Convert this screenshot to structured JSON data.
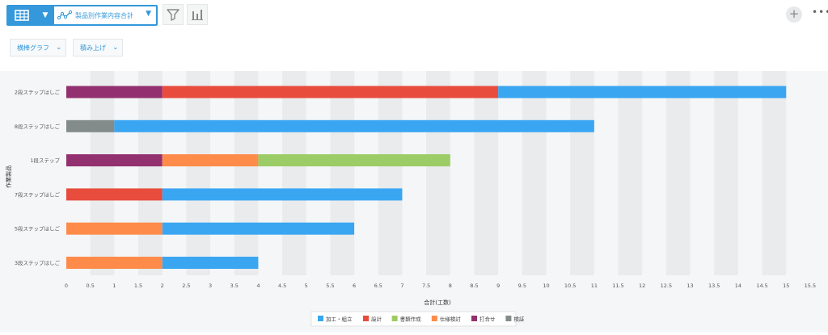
{
  "toolbar": {
    "view_label": "製品別作業内容合計",
    "icons": [
      "table-icon",
      "chevron-down-icon",
      "line-graph-icon",
      "filter-icon",
      "bar-chart-icon",
      "plus-icon",
      "more-icon"
    ],
    "accent": "#3498db"
  },
  "options": {
    "chart_type_label": "横棒グラフ",
    "stack_label": "積み上げ"
  },
  "chart_data": {
    "type": "bar",
    "orientation": "horizontal",
    "stacked": true,
    "title": "",
    "xlabel": "合計(工数)",
    "ylabel": "作業製品",
    "xlim": [
      0,
      15.5
    ],
    "x_ticks": [
      "0",
      "0.5",
      "1",
      "1.5",
      "2",
      "2.5",
      "3",
      "3.5",
      "4",
      "4.5",
      "5",
      "5.5",
      "6",
      "6.5",
      "7",
      "7.5",
      "8",
      "8.5",
      "9",
      "9.5",
      "10",
      "10.5",
      "11",
      "11.5",
      "12",
      "12.5",
      "13",
      "13.5",
      "14",
      "14.5",
      "15",
      "15.5"
    ],
    "categories": [
      "2段ステップはしご",
      "8段ステップはしご",
      "1段ステップ",
      "7段ステップはしご",
      "5段ステップはしご",
      "3段ステップはしご"
    ],
    "series": [
      {
        "name": "打合せ",
        "color": "#93306f",
        "values": [
          2,
          0,
          2,
          0,
          0,
          0
        ]
      },
      {
        "name": "検証",
        "color": "#838b8b",
        "values": [
          0,
          1,
          0,
          0,
          0,
          0
        ]
      },
      {
        "name": "設計",
        "color": "#e74c3c",
        "values": [
          7,
          0,
          0,
          2,
          0,
          0
        ]
      },
      {
        "name": "仕様検討",
        "color": "#ff8b4a",
        "values": [
          0,
          0,
          2,
          0,
          2,
          2
        ]
      },
      {
        "name": "書類作成",
        "color": "#9ccc65",
        "values": [
          0,
          0,
          4,
          0,
          0,
          0
        ]
      },
      {
        "name": "加工・組立",
        "color": "#3aa6f2",
        "values": [
          6,
          10,
          0,
          5,
          4,
          2
        ]
      }
    ],
    "legend": [
      "加工・組立",
      "設計",
      "書類作成",
      "仕様検討",
      "打合せ",
      "検証"
    ],
    "legend_position": "bottom",
    "grid": true
  }
}
